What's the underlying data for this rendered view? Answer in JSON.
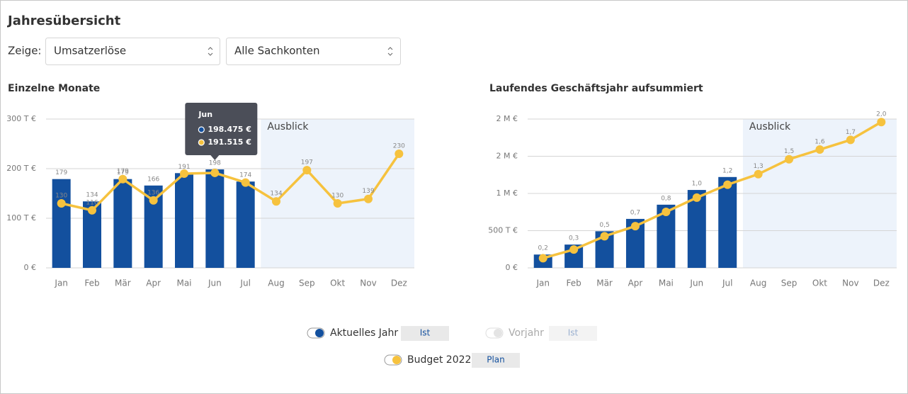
{
  "header": {
    "title": "Jahresübersicht",
    "filter_label": "Zeige:",
    "selects": [
      "Umsatzerlöse",
      "Alle Sachkonten"
    ]
  },
  "chart_data": [
    {
      "type": "combo",
      "title": "Einzelne Monate",
      "categories": [
        "Jan",
        "Feb",
        "Mär",
        "Apr",
        "Mai",
        "Jun",
        "Jul",
        "Aug",
        "Sep",
        "Okt",
        "Nov",
        "Dez"
      ],
      "ylim": [
        0,
        300000
      ],
      "yticks": [
        {
          "value": 0,
          "label": "0 €"
        },
        {
          "value": 100000,
          "label": "100 T €"
        },
        {
          "value": 200000,
          "label": "200 T €"
        },
        {
          "value": 300000,
          "label": "300 T €"
        }
      ],
      "grid": true,
      "forecast": {
        "label": "Ausblick",
        "from": "Aug"
      },
      "series": [
        {
          "type": "bar",
          "color": "#13509e",
          "values": [
            179000,
            134000,
            179000,
            166000,
            191000,
            198475,
            174000,
            null,
            null,
            null,
            null,
            null
          ],
          "value_labels": [
            "179",
            "134",
            "179",
            "166",
            "191",
            "198",
            "174",
            null,
            null,
            null,
            null,
            null
          ]
        },
        {
          "type": "line",
          "color": "#f6c23e",
          "values": [
            130000,
            116000,
            179000,
            136000,
            190000,
            191515,
            172000,
            134000,
            197000,
            130000,
            139000,
            230000
          ],
          "value_labels": [
            "130",
            "116",
            "179",
            "136",
            null,
            null,
            null,
            "134",
            "197",
            "130",
            "139",
            "230"
          ]
        }
      ],
      "tooltip": {
        "title": "Jun",
        "items": [
          {
            "text": "198.475 €",
            "color": "#13509e"
          },
          {
            "text": "191.515 €",
            "color": "#f6c23e"
          }
        ]
      }
    },
    {
      "type": "combo",
      "title": "Laufendes Geschäftsjahr aufsummiert",
      "categories": [
        "Jan",
        "Feb",
        "Mär",
        "Apr",
        "Mai",
        "Jun",
        "Jul",
        "Aug",
        "Sep",
        "Okt",
        "Nov",
        "Dez"
      ],
      "ylim": [
        0,
        2000000
      ],
      "yticks": [
        {
          "value": 0,
          "label": "0 €"
        },
        {
          "value": 500000,
          "label": "500 T €"
        },
        {
          "value": 1000000,
          "label": "1 M €"
        },
        {
          "value": 1500000,
          "label": "2 M €"
        },
        {
          "value": 2000000,
          "label": "2 M €"
        }
      ],
      "grid": true,
      "forecast": {
        "label": "Ausblick",
        "from": "Aug"
      },
      "series": [
        {
          "type": "bar",
          "color": "#13509e",
          "values": [
            179000,
            313000,
            492000,
            658000,
            849000,
            1047000,
            1221000,
            null,
            null,
            null,
            null,
            null
          ],
          "value_labels": [
            "0,2",
            "0,3",
            "0,5",
            "0,7",
            "0,8",
            "1,0",
            "1,2",
            null,
            null,
            null,
            null,
            null
          ]
        },
        {
          "type": "line",
          "color": "#f6c23e",
          "values": [
            130000,
            246000,
            425000,
            561000,
            752000,
            944000,
            1118000,
            1260000,
            1460000,
            1590000,
            1720000,
            1960000
          ],
          "value_labels": [
            null,
            null,
            null,
            null,
            null,
            null,
            null,
            "1,3",
            "1,5",
            "1,6",
            "1,7",
            "2,0"
          ]
        }
      ]
    }
  ],
  "legend": [
    {
      "name": "Aktuelles Jahr",
      "button": "Ist",
      "active": true,
      "color": "#13509e"
    },
    {
      "name": "Vorjahr",
      "button": "Ist",
      "active": false,
      "color": "#cccccc"
    },
    {
      "name": "Budget 2022",
      "button": "Plan",
      "active": true,
      "color": "#f6c23e"
    }
  ]
}
